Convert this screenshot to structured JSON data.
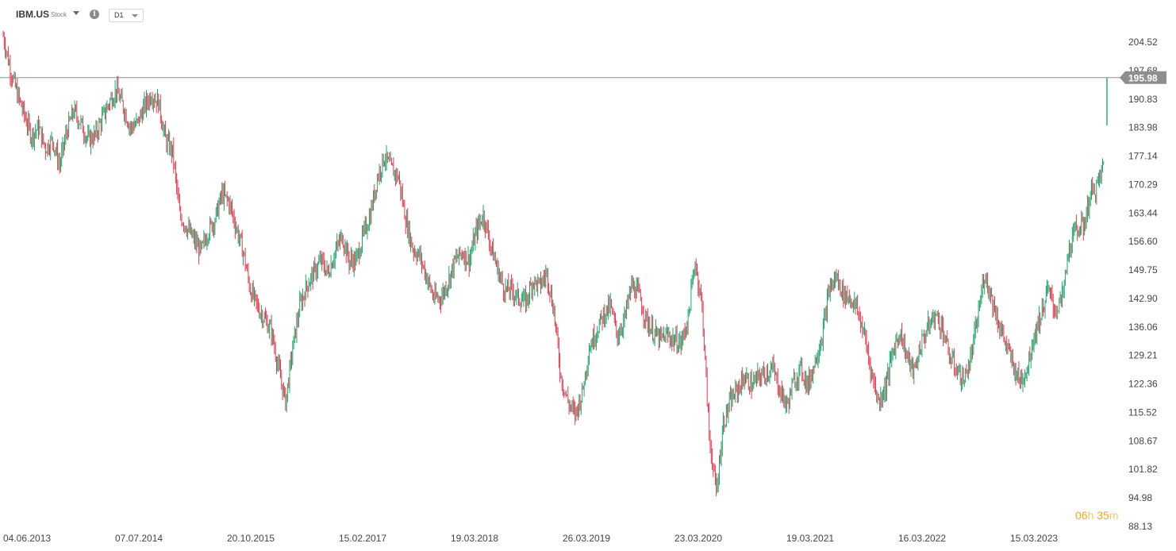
{
  "header": {
    "symbol": "IBM.US",
    "type_label": "Stock",
    "interval": "D1"
  },
  "timer": {
    "hours": "06",
    "h": "h",
    "minutes": "35",
    "m": "m"
  },
  "colors": {
    "up": "#1aa66a",
    "down": "#e8384f",
    "last_price_bg": "#8e8e8e",
    "timer": "#f5a623"
  },
  "chart_data": {
    "type": "candlestick",
    "y_ticks": [
      "204.52",
      "197.68",
      "190.83",
      "183.98",
      "177.14",
      "170.29",
      "163.44",
      "156.60",
      "149.75",
      "142.90",
      "136.06",
      "129.21",
      "122.36",
      "115.52",
      "108.67",
      "101.82",
      "94.98",
      "88.13"
    ],
    "x_ticks": [
      "04.06.2013",
      "07.07.2014",
      "20.10.2015",
      "15.02.2017",
      "19.03.2018",
      "26.03.2019",
      "23.03.2020",
      "19.03.2021",
      "16.03.2022",
      "15.03.2023"
    ],
    "ylim": [
      88.13,
      204.52
    ],
    "last_price": "195.98",
    "grid": false,
    "series": [
      {
        "close": [
          [
            0,
            206
          ],
          [
            0.02,
            198
          ],
          [
            0.04,
            192
          ],
          [
            0.06,
            187
          ],
          [
            0.08,
            182
          ],
          [
            0.1,
            184
          ],
          [
            0.12,
            179
          ],
          [
            0.14,
            181
          ],
          [
            0.16,
            175
          ],
          [
            0.18,
            183
          ],
          [
            0.2,
            188
          ],
          [
            0.22,
            185
          ],
          [
            0.24,
            181
          ],
          [
            0.26,
            182
          ],
          [
            0.28,
            186
          ],
          [
            0.3,
            190
          ],
          [
            0.32,
            193
          ],
          [
            0.34,
            189
          ],
          [
            0.36,
            184
          ],
          [
            0.38,
            185
          ],
          [
            0.4,
            189
          ],
          [
            0.42,
            192
          ],
          [
            0.44,
            190
          ],
          [
            0.46,
            181
          ],
          [
            0.48,
            178
          ],
          [
            0.5,
            163
          ],
          [
            0.52,
            160
          ],
          [
            0.54,
            157
          ],
          [
            0.56,
            154
          ],
          [
            0.58,
            159
          ],
          [
            0.6,
            162
          ],
          [
            0.62,
            168
          ],
          [
            0.64,
            166
          ],
          [
            0.66,
            160
          ],
          [
            0.68,
            154
          ],
          [
            0.7,
            145
          ],
          [
            0.72,
            141
          ],
          [
            0.74,
            138
          ],
          [
            0.76,
            135
          ],
          [
            0.78,
            126
          ],
          [
            0.8,
            118
          ],
          [
            0.82,
            131
          ],
          [
            0.84,
            141
          ],
          [
            0.86,
            146
          ],
          [
            0.88,
            149
          ],
          [
            0.9,
            152
          ],
          [
            0.92,
            149
          ],
          [
            0.94,
            154
          ],
          [
            0.96,
            158
          ],
          [
            0.98,
            152
          ],
          [
            1.0,
            152
          ],
          [
            1.02,
            158
          ],
          [
            1.04,
            163
          ],
          [
            1.06,
            172
          ],
          [
            1.08,
            177
          ],
          [
            1.1,
            174
          ],
          [
            1.12,
            172
          ],
          [
            1.14,
            162
          ],
          [
            1.16,
            155
          ],
          [
            1.18,
            153
          ],
          [
            1.2,
            148
          ],
          [
            1.22,
            143
          ],
          [
            1.24,
            143
          ],
          [
            1.26,
            147
          ],
          [
            1.28,
            152
          ],
          [
            1.3,
            154
          ],
          [
            1.32,
            152
          ],
          [
            1.34,
            159
          ],
          [
            1.36,
            163
          ],
          [
            1.38,
            156
          ],
          [
            1.4,
            150
          ],
          [
            1.42,
            145
          ],
          [
            1.44,
            145
          ],
          [
            1.46,
            143
          ],
          [
            1.48,
            142
          ],
          [
            1.5,
            147
          ],
          [
            1.52,
            146
          ],
          [
            1.54,
            149
          ],
          [
            1.56,
            140
          ],
          [
            1.58,
            124
          ],
          [
            1.6,
            118
          ],
          [
            1.62,
            115
          ],
          [
            1.64,
            120
          ],
          [
            1.66,
            131
          ],
          [
            1.68,
            135
          ],
          [
            1.7,
            139
          ],
          [
            1.72,
            141
          ],
          [
            1.74,
            134
          ],
          [
            1.76,
            138
          ],
          [
            1.78,
            146
          ],
          [
            1.8,
            144
          ],
          [
            1.82,
            138
          ],
          [
            1.84,
            135
          ],
          [
            1.86,
            133
          ],
          [
            1.88,
            134
          ],
          [
            1.9,
            133
          ],
          [
            1.92,
            132
          ],
          [
            1.94,
            138
          ],
          [
            1.96,
            152
          ],
          [
            1.98,
            141
          ],
          [
            2.0,
            110
          ],
          [
            2.02,
            96
          ],
          [
            2.04,
            113
          ],
          [
            2.06,
            118
          ],
          [
            2.08,
            121
          ],
          [
            2.1,
            124
          ],
          [
            2.12,
            122
          ],
          [
            2.14,
            124
          ],
          [
            2.16,
            125
          ],
          [
            2.18,
            126
          ],
          [
            2.2,
            121
          ],
          [
            2.22,
            117
          ],
          [
            2.24,
            123
          ],
          [
            2.26,
            126
          ],
          [
            2.28,
            122
          ],
          [
            2.3,
            128
          ],
          [
            2.32,
            134
          ],
          [
            2.34,
            145
          ],
          [
            2.36,
            148
          ],
          [
            2.38,
            144
          ],
          [
            2.4,
            143
          ],
          [
            2.42,
            140
          ],
          [
            2.44,
            134
          ],
          [
            2.46,
            125
          ],
          [
            2.48,
            118
          ],
          [
            2.5,
            122
          ],
          [
            2.52,
            130
          ],
          [
            2.54,
            135
          ],
          [
            2.56,
            129
          ],
          [
            2.58,
            125
          ],
          [
            2.6,
            132
          ],
          [
            2.62,
            136
          ],
          [
            2.64,
            139
          ],
          [
            2.66,
            136
          ],
          [
            2.68,
            129
          ],
          [
            2.7,
            126
          ],
          [
            2.72,
            123
          ],
          [
            2.74,
            128
          ],
          [
            2.76,
            138
          ],
          [
            2.78,
            149
          ],
          [
            2.8,
            143
          ],
          [
            2.82,
            137
          ],
          [
            2.84,
            132
          ],
          [
            2.86,
            127
          ],
          [
            2.88,
            123
          ],
          [
            2.9,
            126
          ],
          [
            2.92,
            134
          ],
          [
            2.94,
            139
          ],
          [
            2.96,
            145
          ],
          [
            2.98,
            140
          ],
          [
            3.0,
            143
          ],
          [
            3.02,
            155
          ],
          [
            3.04,
            160
          ],
          [
            3.06,
            160
          ],
          [
            3.08,
            168
          ],
          [
            3.1,
            170
          ],
          [
            3.12,
            176
          ]
        ]
      }
    ]
  }
}
